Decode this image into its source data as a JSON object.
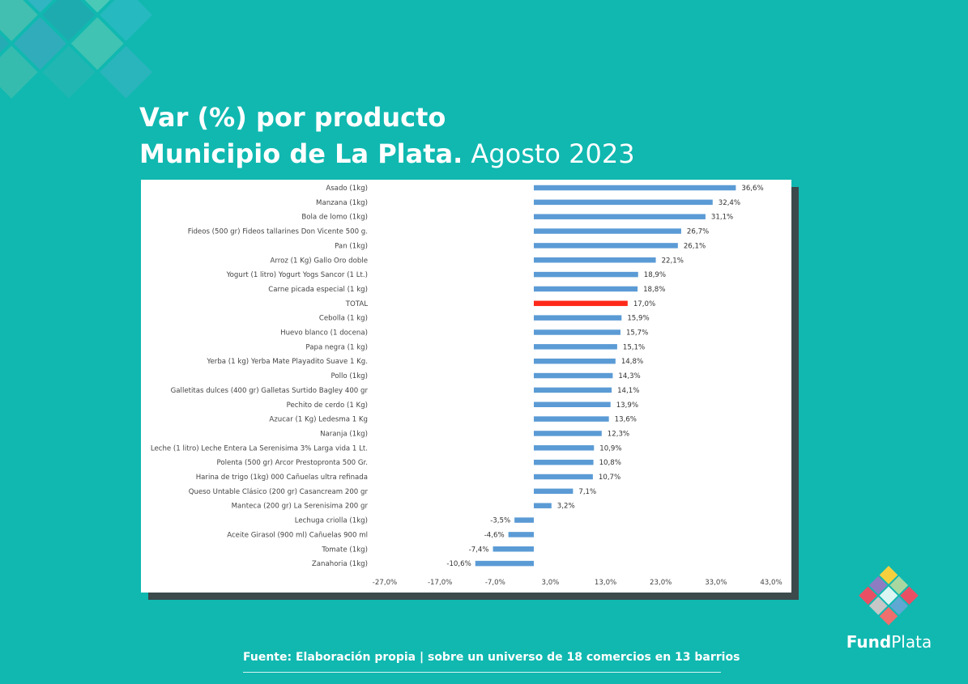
{
  "header": {
    "title_line1": "Var (%) por producto",
    "title_line2_bold": "Municipio de La Plata.",
    "title_line2_light": " Agosto 2023"
  },
  "footer": {
    "source": "Fuente: Elaboración propia | sobre un universo de 18 comercios en 13 barrios"
  },
  "logo": {
    "text_bold": "Fund",
    "text_light": "Plata"
  },
  "colors": {
    "background": "#10b8b0",
    "bar": "#5b9bd5",
    "highlight_bar": "#ff2a1a"
  },
  "chart_data": {
    "type": "bar",
    "orientation": "horizontal",
    "title": "",
    "xlabel": "",
    "ylabel": "",
    "xlim": [
      -27,
      43
    ],
    "x_ticks": [
      "-27,0%",
      "-17,0%",
      "-7,0%",
      "3,0%",
      "13,0%",
      "23,0%",
      "33,0%",
      "43,0%"
    ],
    "highlight_category": "TOTAL",
    "categories": [
      "Asado (1kg)",
      "Manzana (1kg)",
      "Bola de lomo (1kg)",
      "Fideos (500 gr) Fideos tallarines Don Vicente 500 g.",
      "Pan (1kg)",
      "Arroz (1 Kg) Gallo Oro doble",
      "Yogurt (1 litro) Yogurt Yogs Sancor (1 Lt.)",
      "Carne picada especial (1 kg)",
      "TOTAL",
      "Cebolla (1 kg)",
      "Huevo blanco (1 docena)",
      "Papa negra (1 kg)",
      "Yerba (1 kg) Yerba Mate Playadito Suave 1 Kg.",
      "Pollo (1kg)",
      "Galletitas dulces (400 gr) Galletas Surtido Bagley 400 gr",
      "Pechito de cerdo (1 Kg)",
      "Azucar (1 Kg) Ledesma 1 Kg",
      "Naranja (1kg)",
      "Leche (1 litro) Leche Entera La Serenisima 3% Larga vida 1 Lt.",
      "Polenta (500 gr) Arcor Prestopronta 500 Gr.",
      "Harina de trigo (1kg) 000 Cañuelas ultra refinada",
      "Queso Untable Clásico (200 gr) Casancream 200 gr",
      "Manteca (200 gr) La Serenisima 200 gr",
      "Lechuga criolla (1kg)",
      "Aceite Girasol (900 ml) Cañuelas 900 ml",
      "Tomate (1kg)",
      "Zanahoria (1kg)"
    ],
    "values": [
      36.6,
      32.4,
      31.1,
      26.7,
      26.1,
      22.1,
      18.9,
      18.8,
      17.0,
      15.9,
      15.7,
      15.1,
      14.8,
      14.3,
      14.1,
      13.9,
      13.6,
      12.3,
      10.9,
      10.8,
      10.7,
      7.1,
      3.2,
      -3.5,
      -4.6,
      -7.4,
      -10.6
    ],
    "value_labels": [
      "36,6%",
      "32,4%",
      "31,1%",
      "26,7%",
      "26,1%",
      "22,1%",
      "18,9%",
      "18,8%",
      "17,0%",
      "15,9%",
      "15,7%",
      "15,1%",
      "14,8%",
      "14,3%",
      "14,1%",
      "13,9%",
      "13,6%",
      "12,3%",
      "10,9%",
      "10,8%",
      "10,7%",
      "7,1%",
      "3,2%",
      "-3,5%",
      "-4,6%",
      "-7,4%",
      "-10,6%"
    ]
  }
}
